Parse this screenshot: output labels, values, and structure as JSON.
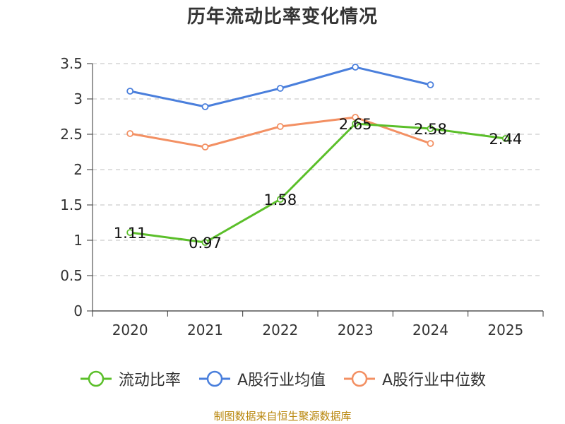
{
  "chart_data": {
    "type": "line",
    "title": "历年流动比率变化情况",
    "categories": [
      "2020",
      "2021",
      "2022",
      "2023",
      "2024",
      "2025"
    ],
    "ylim": [
      0,
      3.5
    ],
    "yticks": [
      "0",
      "0.5",
      "1",
      "1.5",
      "2",
      "2.5",
      "3",
      "3.5"
    ],
    "ytick_values": [
      0,
      0.5,
      1,
      1.5,
      2,
      2.5,
      3,
      3.5
    ],
    "grid": true,
    "legend_position": "bottom",
    "series": [
      {
        "name": "流动比率",
        "color": "#5bbf2a",
        "values": [
          1.11,
          0.97,
          1.58,
          2.65,
          2.58,
          2.44
        ],
        "labels": [
          "1.11",
          "0.97",
          "1.58",
          "2.65",
          "2.58",
          "2.44"
        ],
        "show_labels": true
      },
      {
        "name": "A股行业均值",
        "color": "#4a7fdc",
        "values": [
          3.11,
          2.89,
          3.15,
          3.45,
          3.2,
          null
        ],
        "show_labels": false
      },
      {
        "name": "A股行业中位数",
        "color": "#f39063",
        "values": [
          2.51,
          2.32,
          2.61,
          2.74,
          2.37,
          null
        ],
        "show_labels": false
      }
    ]
  },
  "source_note": "制图数据来自恒生聚源数据库"
}
